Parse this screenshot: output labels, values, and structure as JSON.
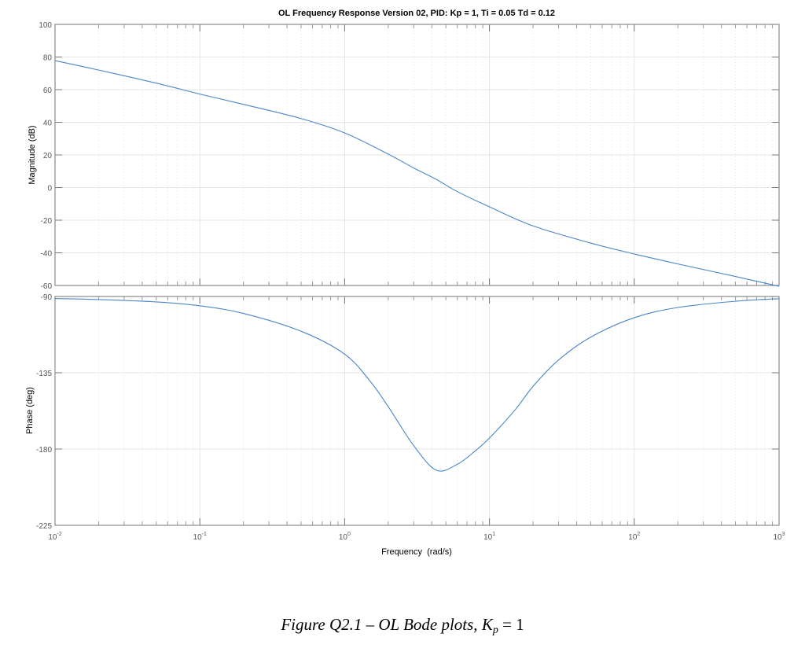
{
  "chart_data": {
    "type": "line",
    "title": "OL Frequency Response Version 02, PID: Kp = 1, Ti = 0.05 Td = 0.12",
    "xlabel": "Frequency  (rad/s)",
    "xscale": "log",
    "xlim": [
      0.01,
      1000
    ],
    "x_ticks": [
      0.01,
      0.1,
      1,
      10,
      100,
      1000
    ],
    "x_tick_labels": [
      {
        "base": "10",
        "exp": "-2"
      },
      {
        "base": "10",
        "exp": "-1"
      },
      {
        "base": "10",
        "exp": "0"
      },
      {
        "base": "10",
        "exp": "1"
      },
      {
        "base": "10",
        "exp": "2"
      },
      {
        "base": "10",
        "exp": "3"
      }
    ],
    "grid": true,
    "line_color": "#4a86c8",
    "subplots": [
      {
        "name": "magnitude",
        "ylabel": "Magnitude (dB)",
        "ylim": [
          -60,
          100
        ],
        "y_ticks": [
          100,
          80,
          60,
          40,
          20,
          0,
          -20,
          -40,
          -60
        ],
        "x": [
          0.01,
          0.02,
          0.05,
          0.1,
          0.2,
          0.5,
          1,
          2,
          3,
          4.3,
          6,
          10,
          20,
          50,
          100,
          200,
          500,
          1000
        ],
        "values": [
          77.8,
          72.0,
          64.0,
          57.3,
          51.0,
          42.3,
          33.5,
          20.5,
          12.0,
          5.0,
          -2.5,
          -11.8,
          -23.5,
          -34.0,
          -40.7,
          -46.8,
          -54.5,
          -60.5
        ]
      },
      {
        "name": "phase",
        "ylabel": "Phase (deg)",
        "ylim": [
          -225,
          -90
        ],
        "y_ticks": [
          -90,
          -135,
          -180,
          -225
        ],
        "x": [
          0.01,
          0.02,
          0.05,
          0.1,
          0.2,
          0.5,
          1,
          1.5,
          2,
          3,
          4.3,
          6,
          8,
          10,
          15,
          20,
          30,
          50,
          100,
          200,
          500,
          1000
        ],
        "values": [
          -91.2,
          -91.8,
          -93.2,
          -95.5,
          -100.0,
          -110.5,
          -124.0,
          -140.0,
          -155.0,
          -178.0,
          -192.5,
          -189.0,
          -181.0,
          -173.5,
          -157.0,
          -143.0,
          -127.5,
          -114.0,
          -102.5,
          -96.5,
          -92.8,
          -91.3
        ]
      }
    ]
  },
  "caption": {
    "prefix": "Figure Q2.1 – OL Bode plots, ",
    "kp_main": "K",
    "kp_sub": "p",
    "suffix": " = 1"
  }
}
